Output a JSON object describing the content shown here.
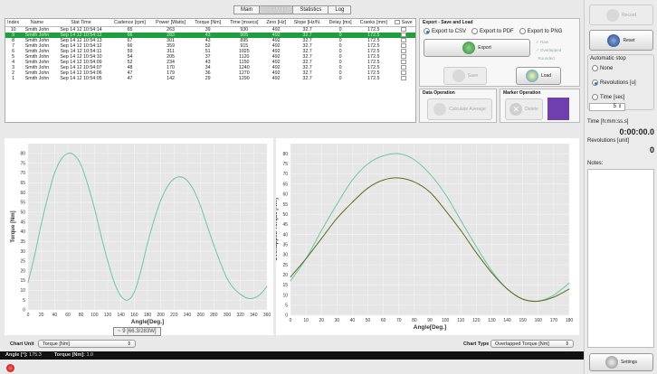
{
  "tabs": [
    "Main",
    "Analysis",
    "Statistics",
    "Log"
  ],
  "table": {
    "headers": [
      "Index",
      "Name",
      "Stat Time",
      "Cadence [rpm]",
      "Power [Watts]",
      "Torque [Nm]",
      "Time [msecs]",
      "Zero [Hz]",
      "Slope [Hz/N.",
      "Delay [ms]",
      "Cranks [mm]"
    ],
    "save_label": "Save",
    "rows": [
      [
        "10",
        "Smith John",
        "Sep 14 12 10:54:14",
        "65",
        "263",
        "39",
        "930",
        "492",
        "32.7",
        "0",
        "172.5"
      ],
      [
        "9",
        "Smith John",
        "Sep 14 12 10:54:12",
        "66",
        "283",
        "43",
        "905",
        "492",
        "32.7",
        "0",
        "172.5"
      ],
      [
        "8",
        "Smith John",
        "Sep 14 12 10:54:13",
        "67",
        "301",
        "43",
        "895",
        "492",
        "32.7",
        "0",
        "172.5"
      ],
      [
        "7",
        "Smith John",
        "Sep 14 12 10:54:12",
        "66",
        "359",
        "52",
        "915",
        "492",
        "32.7",
        "0",
        "172.5"
      ],
      [
        "6",
        "Smith John",
        "Sep 14 12 10:54:11",
        "59",
        "311",
        "51",
        "1025",
        "492",
        "32.7",
        "0",
        "172.5"
      ],
      [
        "5",
        "Smith John",
        "Sep 14 12 10:54:10",
        "54",
        "205",
        "37",
        "1120",
        "492",
        "32.7",
        "0",
        "172.5"
      ],
      [
        "4",
        "Smith John",
        "Sep 14 12 10:54:09",
        "52",
        "234",
        "43",
        "1150",
        "492",
        "32.7",
        "0",
        "172.5"
      ],
      [
        "3",
        "Smith John",
        "Sep 14 12 10:54:07",
        "48",
        "170",
        "34",
        "1240",
        "492",
        "32.7",
        "0",
        "172.5"
      ],
      [
        "2",
        "Smith John",
        "Sep 14 12 10:54:06",
        "47",
        "179",
        "36",
        "1270",
        "492",
        "32.7",
        "0",
        "172.5"
      ],
      [
        "1",
        "Smith John",
        "Sep 14 12 10:54:05",
        "47",
        "142",
        "29",
        "1290",
        "492",
        "32.7",
        "0",
        "172.5"
      ]
    ]
  },
  "export": {
    "title": "Export - Save and Load",
    "csv": "Export to CSV",
    "pdf": "Export to PDF",
    "png": "Export to PNG",
    "export_btn": "Export",
    "raw": "Raw",
    "overlapped": "Overlapped",
    "rounded": "Rounded",
    "save_btn": "Save",
    "load_btn": "Load"
  },
  "data_op": {
    "title": "Data Operation",
    "calc_btn": "Calculate Average"
  },
  "marker_op": {
    "title": "Marker Operation",
    "delete_btn": "Delete",
    "marker_color": "#6f3fb0"
  },
  "right": {
    "record": "Record",
    "reset": "Reset",
    "auto_stop": "Automatic stop",
    "none": "None",
    "revs": "Revolutions [u]",
    "time": "Time [sec]",
    "stepper": "5",
    "time_label": "Time [h:mm:ss.s]",
    "time_value": "0:00:00.0",
    "rev_label": "Revolutions [unit]",
    "rev_value": "0",
    "notes": "Notes:",
    "settings": "Settings"
  },
  "chart_left": {
    "ylabel": "Torque [Nm]",
    "xlabel": "Angle[Deg.]",
    "readout": "9 [66.3/283W]",
    "unit_label": "Chart Unit",
    "unit_value": "Torque [Nm]"
  },
  "chart_right": {
    "ylabel": "Overlapped Torque [Nm]",
    "xlabel": "Angle[Deg.]",
    "type_label": "Chart Type",
    "type_value": "Overlapped Torque [Nm]"
  },
  "status": {
    "angle_label": "Angle [°]:",
    "angle_value": "175.3",
    "torque_label": "Torque [Nm]:",
    "torque_value": "1.0"
  },
  "chart_data": [
    {
      "type": "line",
      "xlabel": "Angle[Deg.]",
      "ylabel": "Torque [Nm]",
      "xlim": [
        0,
        360
      ],
      "ylim": [
        0,
        85
      ],
      "xticks": [
        0,
        20,
        40,
        60,
        80,
        100,
        120,
        140,
        160,
        180,
        200,
        220,
        240,
        260,
        280,
        300,
        320,
        340,
        360
      ],
      "yticks": [
        0,
        5,
        10,
        15,
        20,
        25,
        30,
        35,
        40,
        45,
        50,
        55,
        60,
        65,
        70,
        75,
        80
      ],
      "series": [
        {
          "color": "#6fc6a4",
          "x": [
            0,
            10,
            20,
            30,
            40,
            50,
            60,
            70,
            80,
            90,
            100,
            110,
            120,
            130,
            140,
            150,
            160,
            170,
            180,
            190,
            200,
            210,
            220,
            230,
            240,
            250,
            260,
            270,
            280,
            290,
            300,
            310,
            320,
            330,
            340,
            350,
            360
          ],
          "y": [
            14,
            28,
            44,
            58,
            70,
            77,
            80,
            79,
            74,
            64,
            52,
            38,
            25,
            14,
            7,
            5,
            9,
            20,
            34,
            46,
            56,
            63,
            67,
            68,
            66,
            61,
            53,
            43,
            33,
            24,
            16,
            11,
            8,
            6,
            6,
            8,
            12
          ]
        }
      ]
    },
    {
      "type": "line",
      "xlabel": "Angle[Deg.]",
      "ylabel": "Overlapped Torque [Nm]",
      "xlim": [
        0,
        180
      ],
      "ylim": [
        0,
        85
      ],
      "xticks": [
        0,
        10,
        20,
        30,
        40,
        50,
        60,
        70,
        80,
        90,
        100,
        110,
        120,
        130,
        140,
        150,
        160,
        170,
        180
      ],
      "yticks": [
        0,
        5,
        10,
        15,
        20,
        25,
        30,
        35,
        40,
        45,
        50,
        55,
        60,
        65,
        70,
        75,
        80
      ],
      "series": [
        {
          "color": "#6fc6a4",
          "x": [
            0,
            10,
            20,
            30,
            40,
            50,
            60,
            70,
            80,
            90,
            100,
            110,
            120,
            130,
            140,
            150,
            160,
            170,
            180
          ],
          "y": [
            17,
            28,
            42,
            55,
            67,
            75,
            79,
            80,
            77,
            70,
            60,
            47,
            34,
            22,
            13,
            8,
            7,
            10,
            16
          ]
        },
        {
          "color": "#5b6e1e",
          "x": [
            0,
            10,
            20,
            30,
            40,
            50,
            60,
            70,
            80,
            90,
            100,
            110,
            120,
            130,
            140,
            150,
            160,
            170,
            180
          ],
          "y": [
            19,
            28,
            38,
            48,
            56,
            63,
            67,
            68,
            66,
            61,
            52,
            42,
            31,
            21,
            13,
            8,
            7,
            9,
            13
          ]
        }
      ]
    }
  ]
}
